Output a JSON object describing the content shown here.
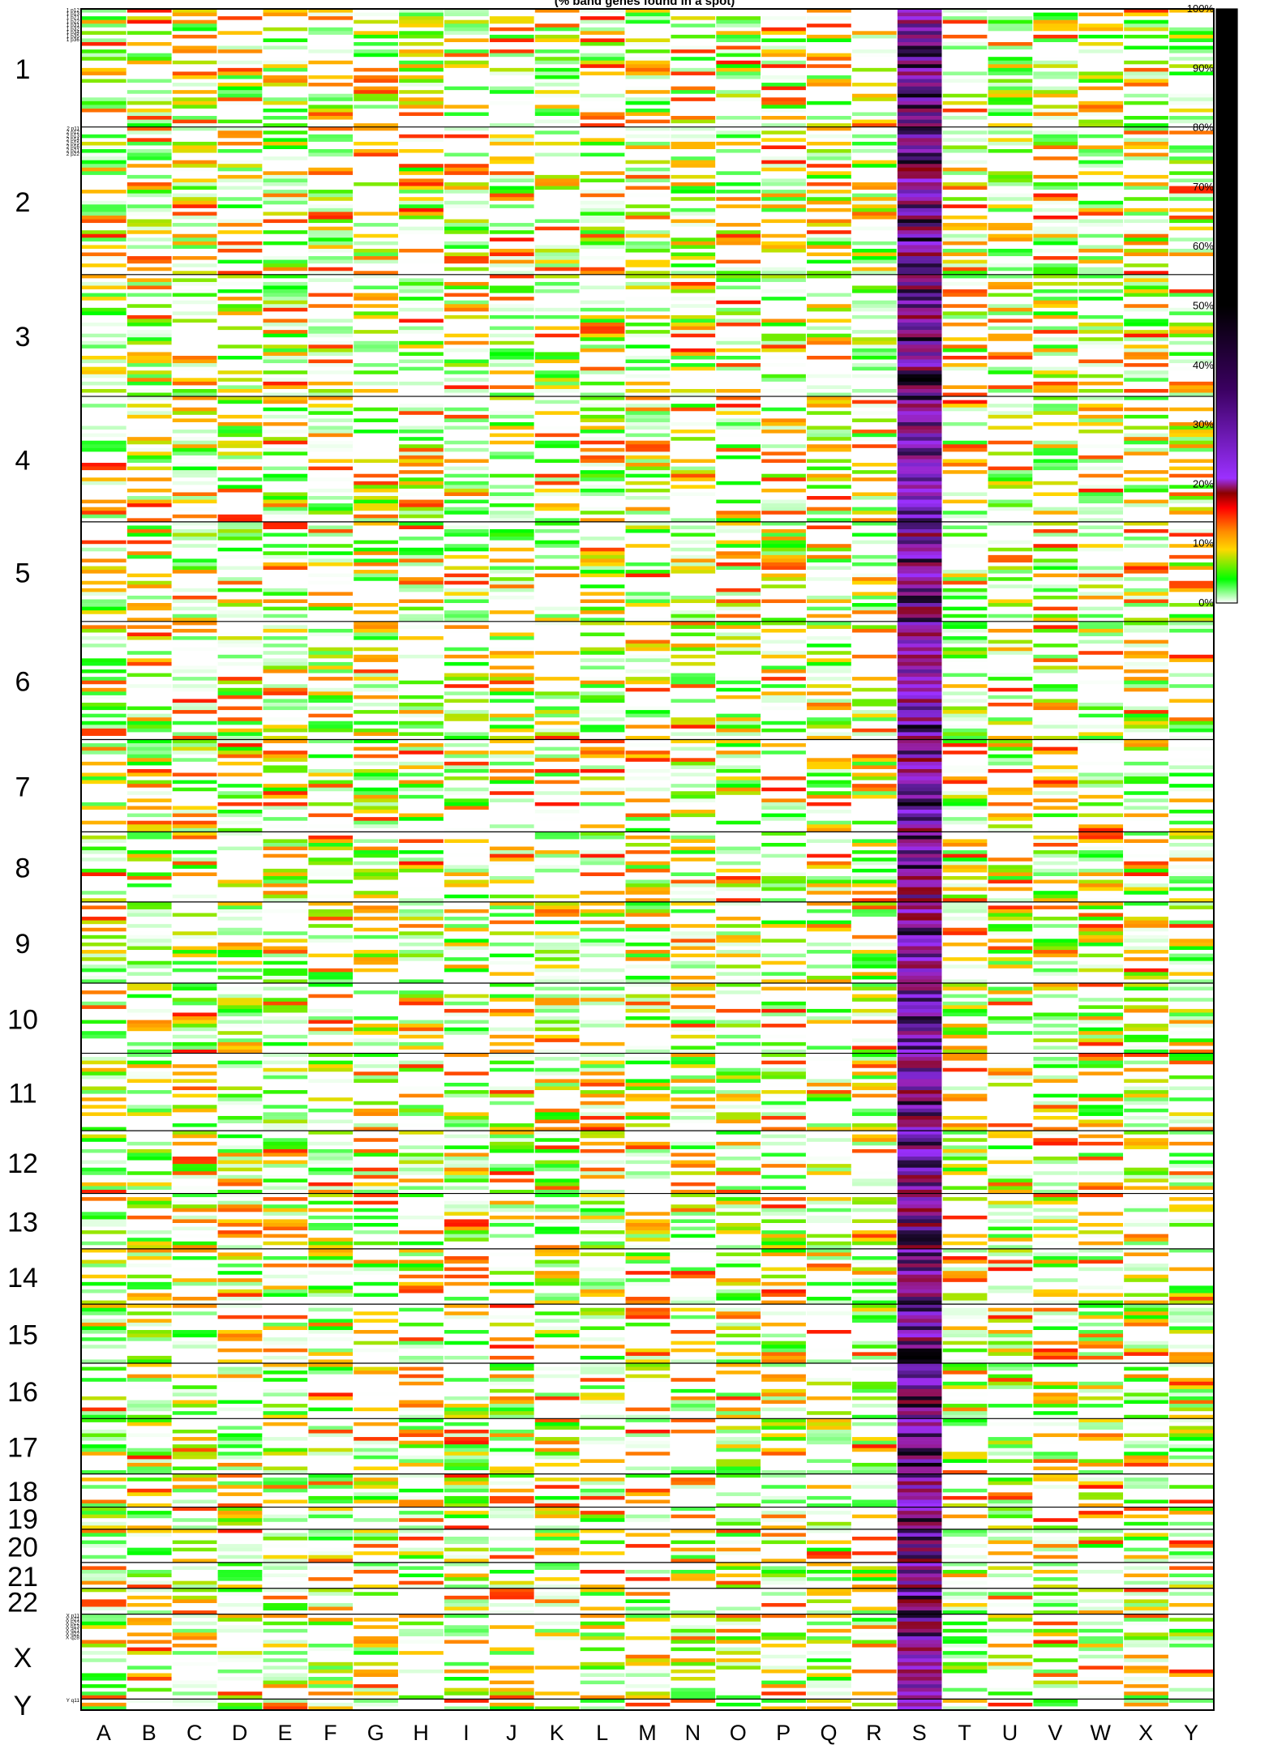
{
  "chart_data": {
    "type": "heatmap",
    "title": "(% band genes found in a spot)",
    "xlabel": "",
    "ylabel": "",
    "columns": [
      "A",
      "B",
      "C",
      "D",
      "E",
      "F",
      "G",
      "H",
      "I",
      "J",
      "K",
      "L",
      "M",
      "N",
      "O",
      "P",
      "Q",
      "R",
      "S",
      "T",
      "U",
      "V",
      "W",
      "X",
      "Y"
    ],
    "chromosomes": [
      "1",
      "2",
      "3",
      "4",
      "5",
      "6",
      "7",
      "8",
      "9",
      "10",
      "11",
      "12",
      "13",
      "14",
      "15",
      "16",
      "17",
      "18",
      "19",
      "20",
      "21",
      "22",
      "X",
      "Y"
    ],
    "band_counts": [
      32,
      40,
      33,
      34,
      27,
      32,
      25,
      19,
      22,
      19,
      21,
      17,
      15,
      15,
      16,
      15,
      15,
      9,
      6,
      9,
      7,
      7,
      23,
      3
    ],
    "band_labels": {
      "1": [
        "1 p12",
        "1 p13",
        "1 p21",
        "1 p22",
        "1 p31",
        "1 p32",
        "1 p34",
        "1 p35",
        "1 p36"
      ],
      "2": [
        "2 p11",
        "2 p12",
        "2 p13",
        "2 p14",
        "2 p15",
        "2 p16",
        "2 p21",
        "2 p22"
      ],
      "X": [
        "X p11",
        "X p21",
        "X p22",
        "X q13",
        "X q21",
        "X q22",
        "X q28"
      ],
      "Y": [
        "Y q11"
      ]
    },
    "legend": {
      "ticks": [
        "0%",
        "10%",
        "20%",
        "30%",
        "40%",
        "50%",
        "60%",
        "70%",
        "80%",
        "90%",
        "100%"
      ],
      "stops": [
        "#ffffff",
        "#00ff00",
        "#ffd700",
        "#ff8c00",
        "#ff0000",
        "#8b0000",
        "#9b30ff",
        "#000000"
      ],
      "position": "right"
    },
    "grid": false
  },
  "colors": {
    "border": "#000000",
    "separator": "#000000"
  }
}
